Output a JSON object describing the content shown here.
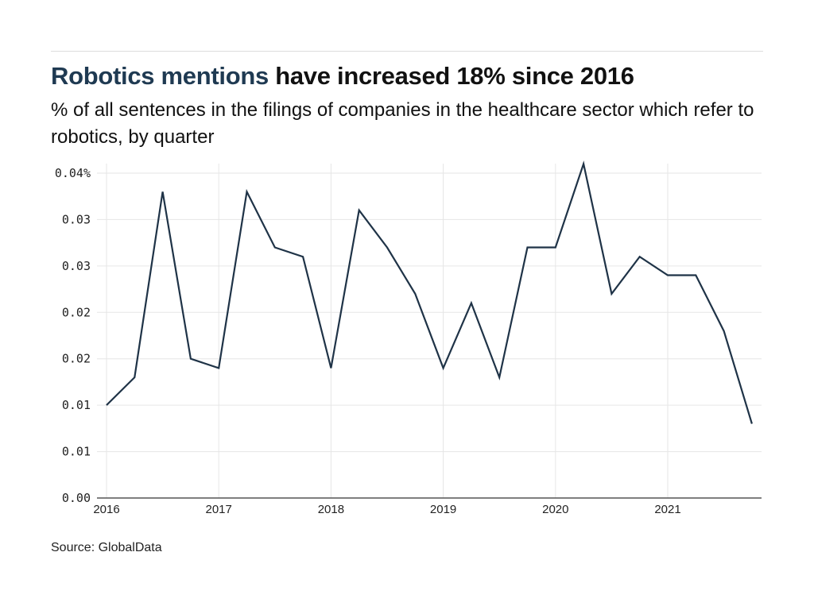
{
  "header": {
    "title_highlight": "Robotics mentions",
    "title_rest": " have increased 18% since 2016",
    "subtitle": "% of all sentences in the filings of companies in the healthcare sector which refer to robotics, by quarter"
  },
  "footer": {
    "source": "Source: GlobalData"
  },
  "colors": {
    "line": "#1f3347",
    "highlight": "#1f3a52",
    "grid": "#e6e6e6",
    "axis": "#555555"
  },
  "chart_data": {
    "type": "line",
    "title": "Robotics mentions have increased 18% since 2016",
    "subtitle": "% of all sentences in the filings of companies in the healthcare sector which refer to robotics, by quarter",
    "xlabel": "",
    "ylabel": "",
    "ylim": [
      0,
      0.035
    ],
    "grid": true,
    "legend": "none",
    "y_ticks": [
      {
        "value": 0.0,
        "label": "0.00"
      },
      {
        "value": 0.005,
        "label": "0.01"
      },
      {
        "value": 0.01,
        "label": "0.01"
      },
      {
        "value": 0.015,
        "label": "0.02"
      },
      {
        "value": 0.02,
        "label": "0.02"
      },
      {
        "value": 0.025,
        "label": "0.03"
      },
      {
        "value": 0.03,
        "label": "0.03"
      },
      {
        "value": 0.035,
        "label": "0.04%"
      }
    ],
    "x_ticks": [
      "2016",
      "2017",
      "2018",
      "2019",
      "2020",
      "2021"
    ],
    "x": [
      "2016 Q1",
      "2016 Q2",
      "2016 Q3",
      "2016 Q4",
      "2017 Q1",
      "2017 Q2",
      "2017 Q3",
      "2017 Q4",
      "2018 Q1",
      "2018 Q2",
      "2018 Q3",
      "2018 Q4",
      "2019 Q1",
      "2019 Q2",
      "2019 Q3",
      "2019 Q4",
      "2020 Q1",
      "2020 Q2",
      "2020 Q3",
      "2020 Q4",
      "2021 Q1",
      "2021 Q2",
      "2021 Q3",
      "2021 Q4"
    ],
    "series": [
      {
        "name": "Robotics mentions (%)",
        "values": [
          0.01,
          0.013,
          0.033,
          0.015,
          0.014,
          0.033,
          0.027,
          0.026,
          0.014,
          0.031,
          0.027,
          0.022,
          0.014,
          0.021,
          0.013,
          0.027,
          0.027,
          0.036,
          0.022,
          0.026,
          0.024,
          0.024,
          0.018,
          0.008
        ]
      }
    ],
    "source": "Source: GlobalData"
  }
}
